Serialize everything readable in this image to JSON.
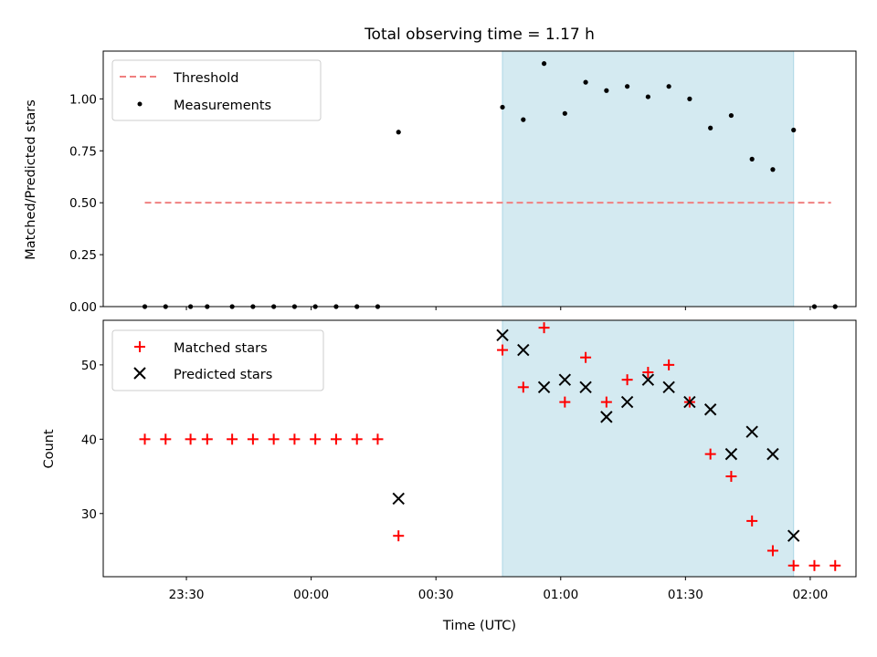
{
  "chart_data": [
    {
      "type": "scatter",
      "title": "Total observing time = 1.17 h",
      "ylabel": "Matched/Predicted stars",
      "ylim": [
        0,
        1.23
      ],
      "yticks": [
        "0.00",
        "0.25",
        "0.50",
        "0.75",
        "1.00"
      ],
      "grid": false,
      "legend": "upper left",
      "highlight_span": {
        "start_min": 46,
        "end_min": 116,
        "color": "#d4eaf1"
      },
      "threshold": {
        "name": "Threshold",
        "value": 0.5,
        "x_from_min": -40,
        "x_to_min": 125,
        "color": "#f08080"
      },
      "series": [
        {
          "name": "Measurements",
          "color": "#000000",
          "x_min": [
            -40,
            -35,
            -29,
            -25,
            -19,
            -14,
            -9,
            -4,
            1,
            6,
            11,
            16,
            21,
            46,
            51,
            56,
            61,
            66,
            71,
            76,
            81,
            86,
            91,
            96,
            101,
            106,
            111,
            116,
            121,
            126
          ],
          "y": [
            0,
            0,
            0,
            0,
            0,
            0,
            0,
            0,
            0,
            0,
            0,
            0,
            0.84,
            0.96,
            0.9,
            1.17,
            0.93,
            1.08,
            1.04,
            1.06,
            1.01,
            1.06,
            1.0,
            0.86,
            0.92,
            0.71,
            0.66,
            0.85,
            0,
            0
          ]
        }
      ]
    },
    {
      "type": "scatter",
      "xlabel": "Time (UTC)",
      "ylabel": "Count",
      "ylim": [
        21.5,
        56
      ],
      "yticks": [
        "30",
        "40",
        "50"
      ],
      "xticks": [
        "23:30",
        "00:00",
        "00:30",
        "01:00",
        "01:30",
        "02:00"
      ],
      "grid": false,
      "legend": "upper left",
      "highlight_span": {
        "start_min": 46,
        "end_min": 116,
        "color": "#d4eaf1"
      },
      "series": [
        {
          "name": "Matched stars",
          "marker": "+",
          "color": "#ff0000",
          "x_min": [
            -40,
            -35,
            -29,
            -25,
            -19,
            -14,
            -9,
            -4,
            1,
            6,
            11,
            16,
            21,
            46,
            51,
            56,
            61,
            66,
            71,
            76,
            81,
            86,
            91,
            96,
            101,
            106,
            111,
            116,
            121,
            126
          ],
          "y": [
            40,
            40,
            40,
            40,
            40,
            40,
            40,
            40,
            40,
            40,
            40,
            40,
            27,
            52,
            47,
            55,
            45,
            51,
            45,
            48,
            49,
            50,
            45,
            38,
            35,
            29,
            25,
            23,
            23,
            23
          ]
        },
        {
          "name": "Predicted stars",
          "marker": "x",
          "color": "#000000",
          "x_min": [
            21,
            46,
            51,
            56,
            61,
            66,
            71,
            76,
            81,
            86,
            91,
            96,
            101,
            106,
            111,
            116
          ],
          "y": [
            32,
            54,
            52,
            47,
            48,
            47,
            43,
            45,
            48,
            47,
            45,
            44,
            38,
            41,
            38,
            27
          ]
        }
      ]
    }
  ]
}
